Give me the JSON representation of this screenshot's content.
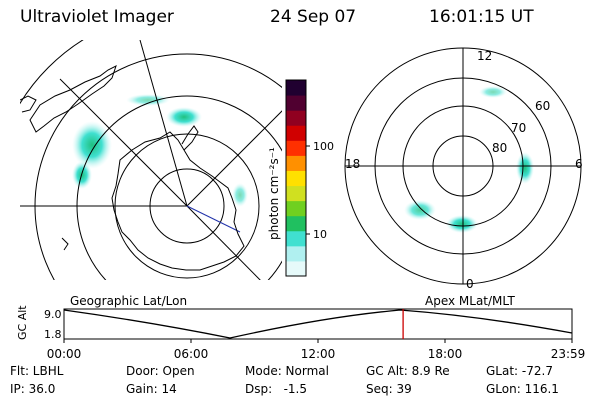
{
  "header": {
    "instrument": "Ultraviolet Imager",
    "date": "24 Sep 07",
    "time": "16:01:15 UT"
  },
  "geo_panel": {
    "label": "Geographic Lat/Lon",
    "colors": {
      "land": "#000000",
      "grid": "#000000",
      "aurora": "#33dddd"
    }
  },
  "apex_panel": {
    "label": "Apex MLat/MLT",
    "mlt_labels": [
      "12",
      "18",
      "6",
      "0"
    ],
    "mlat_labels": [
      "60",
      "70",
      "80"
    ]
  },
  "colorbar": {
    "unit_label": "photon cm⁻²s⁻¹",
    "ticks": [
      "100",
      "10"
    ],
    "scale": "log",
    "colors": [
      "#e6fafa",
      "#b0f0f0",
      "#40e0d0",
      "#20c060",
      "#70d020",
      "#d0e020",
      "#ffe000",
      "#ff9000",
      "#ff3000",
      "#d00000",
      "#900020",
      "#500030",
      "#200030"
    ]
  },
  "altitude_plot": {
    "ylabel": "GC Alt",
    "y_ticks": [
      "9.0",
      "1.8"
    ],
    "x_ticks": [
      "00:00",
      "06:00",
      "12:00",
      "18:00",
      "23:59"
    ],
    "marker_time_hours": 16.02,
    "marker_color": "#cc0000"
  },
  "info": {
    "filter": "Flt: LBHL",
    "ip": "IP: 36.0",
    "door": "Door: Open",
    "gain": "Gain: 14",
    "mode": "Mode: Normal",
    "dsp": "Dsp:   -1.5",
    "gc_alt": "GC Alt: 8.9 Re",
    "seq": "Seq: 39",
    "glat": "GLat: -72.7",
    "glon": "GLon: 116.1"
  }
}
